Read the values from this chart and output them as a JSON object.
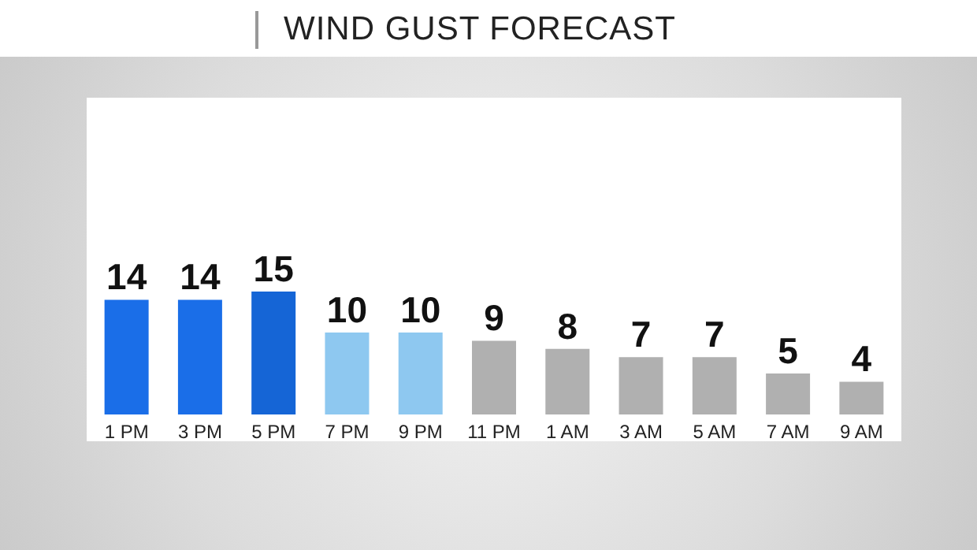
{
  "chart_data": {
    "type": "bar",
    "title": "WIND GUST FORECAST",
    "categories": [
      "1 PM",
      "3 PM",
      "5 PM",
      "7 PM",
      "9 PM",
      "11 PM",
      "1 AM",
      "3 AM",
      "5 AM",
      "7 AM",
      "9 AM"
    ],
    "values": [
      14,
      14,
      15,
      10,
      10,
      9,
      8,
      7,
      7,
      5,
      4
    ],
    "colors": [
      "#1a6ee8",
      "#1a6ee8",
      "#1565d6",
      "#8ec8f0",
      "#8ec8f0",
      "#b0b0b0",
      "#b0b0b0",
      "#b0b0b0",
      "#b0b0b0",
      "#b0b0b0",
      "#b0b0b0"
    ],
    "data_labels": true
  }
}
